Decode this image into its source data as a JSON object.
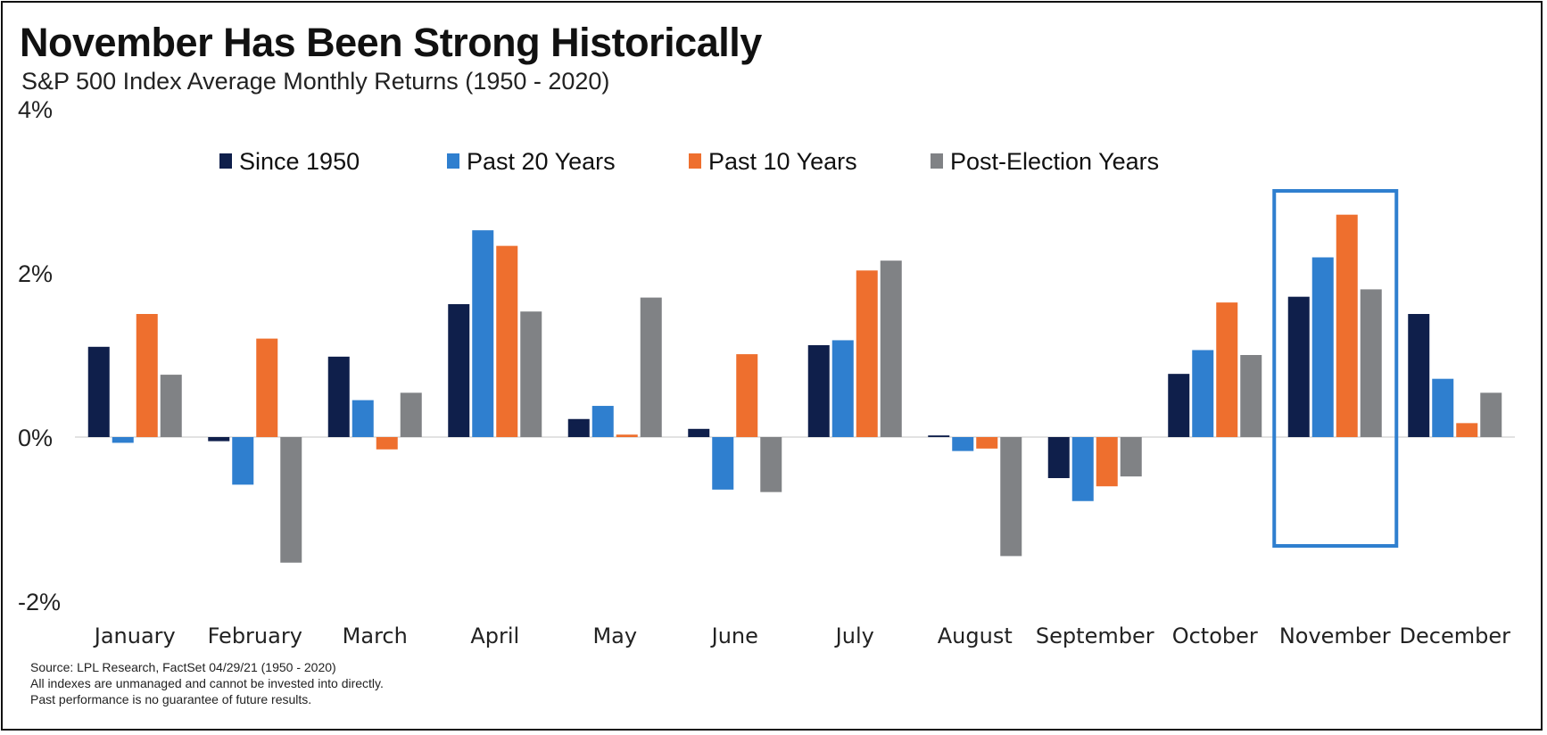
{
  "title": "November Has Been Strong Historically",
  "subtitle": "S&P 500 Index Average Monthly Returns (1950 - 2020)",
  "source_lines": [
    "Source: LPL Research, FactSet 04/29/21 (1950 - 2020)",
    "All indexes are unmanaged and cannot be invested into directly.",
    "Past performance is no guarantee of future results."
  ],
  "chart_data": {
    "type": "bar",
    "title": "November Has Been Strong Historically",
    "subtitle": "S&P 500 Index Average Monthly Returns (1950 - 2020)",
    "xlabel": "",
    "ylabel": "",
    "ylim": [
      -2,
      4
    ],
    "y_ticks": [
      {
        "value": 4,
        "label": "4%"
      },
      {
        "value": 2,
        "label": "2%"
      },
      {
        "value": 0,
        "label": "0%"
      },
      {
        "value": -2,
        "label": "-2%"
      }
    ],
    "grid": false,
    "legend_position": "top-center",
    "categories": [
      "January",
      "February",
      "March",
      "April",
      "May",
      "June",
      "July",
      "August",
      "September",
      "October",
      "November",
      "December"
    ],
    "series": [
      {
        "name": "Since 1950",
        "color": "#0f1f4b",
        "values": [
          1.1,
          -0.05,
          0.98,
          1.62,
          0.22,
          0.1,
          1.12,
          0.02,
          -0.5,
          0.77,
          1.71,
          1.5
        ]
      },
      {
        "name": "Past 20 Years",
        "color": "#2f7fcf",
        "values": [
          -0.07,
          -0.58,
          0.45,
          2.52,
          0.38,
          -0.64,
          1.18,
          -0.17,
          -0.78,
          1.06,
          2.19,
          0.71
        ]
      },
      {
        "name": "Past 10 Years",
        "color": "#ee6f2e",
        "values": [
          1.5,
          1.2,
          -0.15,
          2.33,
          0.03,
          1.01,
          2.03,
          -0.14,
          -0.6,
          1.64,
          2.71,
          0.17
        ]
      },
      {
        "name": "Post-Election Years",
        "color": "#808285",
        "values": [
          0.76,
          -1.53,
          0.54,
          1.53,
          1.7,
          -0.67,
          2.15,
          -1.45,
          -0.48,
          1.0,
          1.8,
          0.54
        ]
      }
    ],
    "highlight": {
      "category": "November",
      "color": "#2f7fcf"
    }
  }
}
